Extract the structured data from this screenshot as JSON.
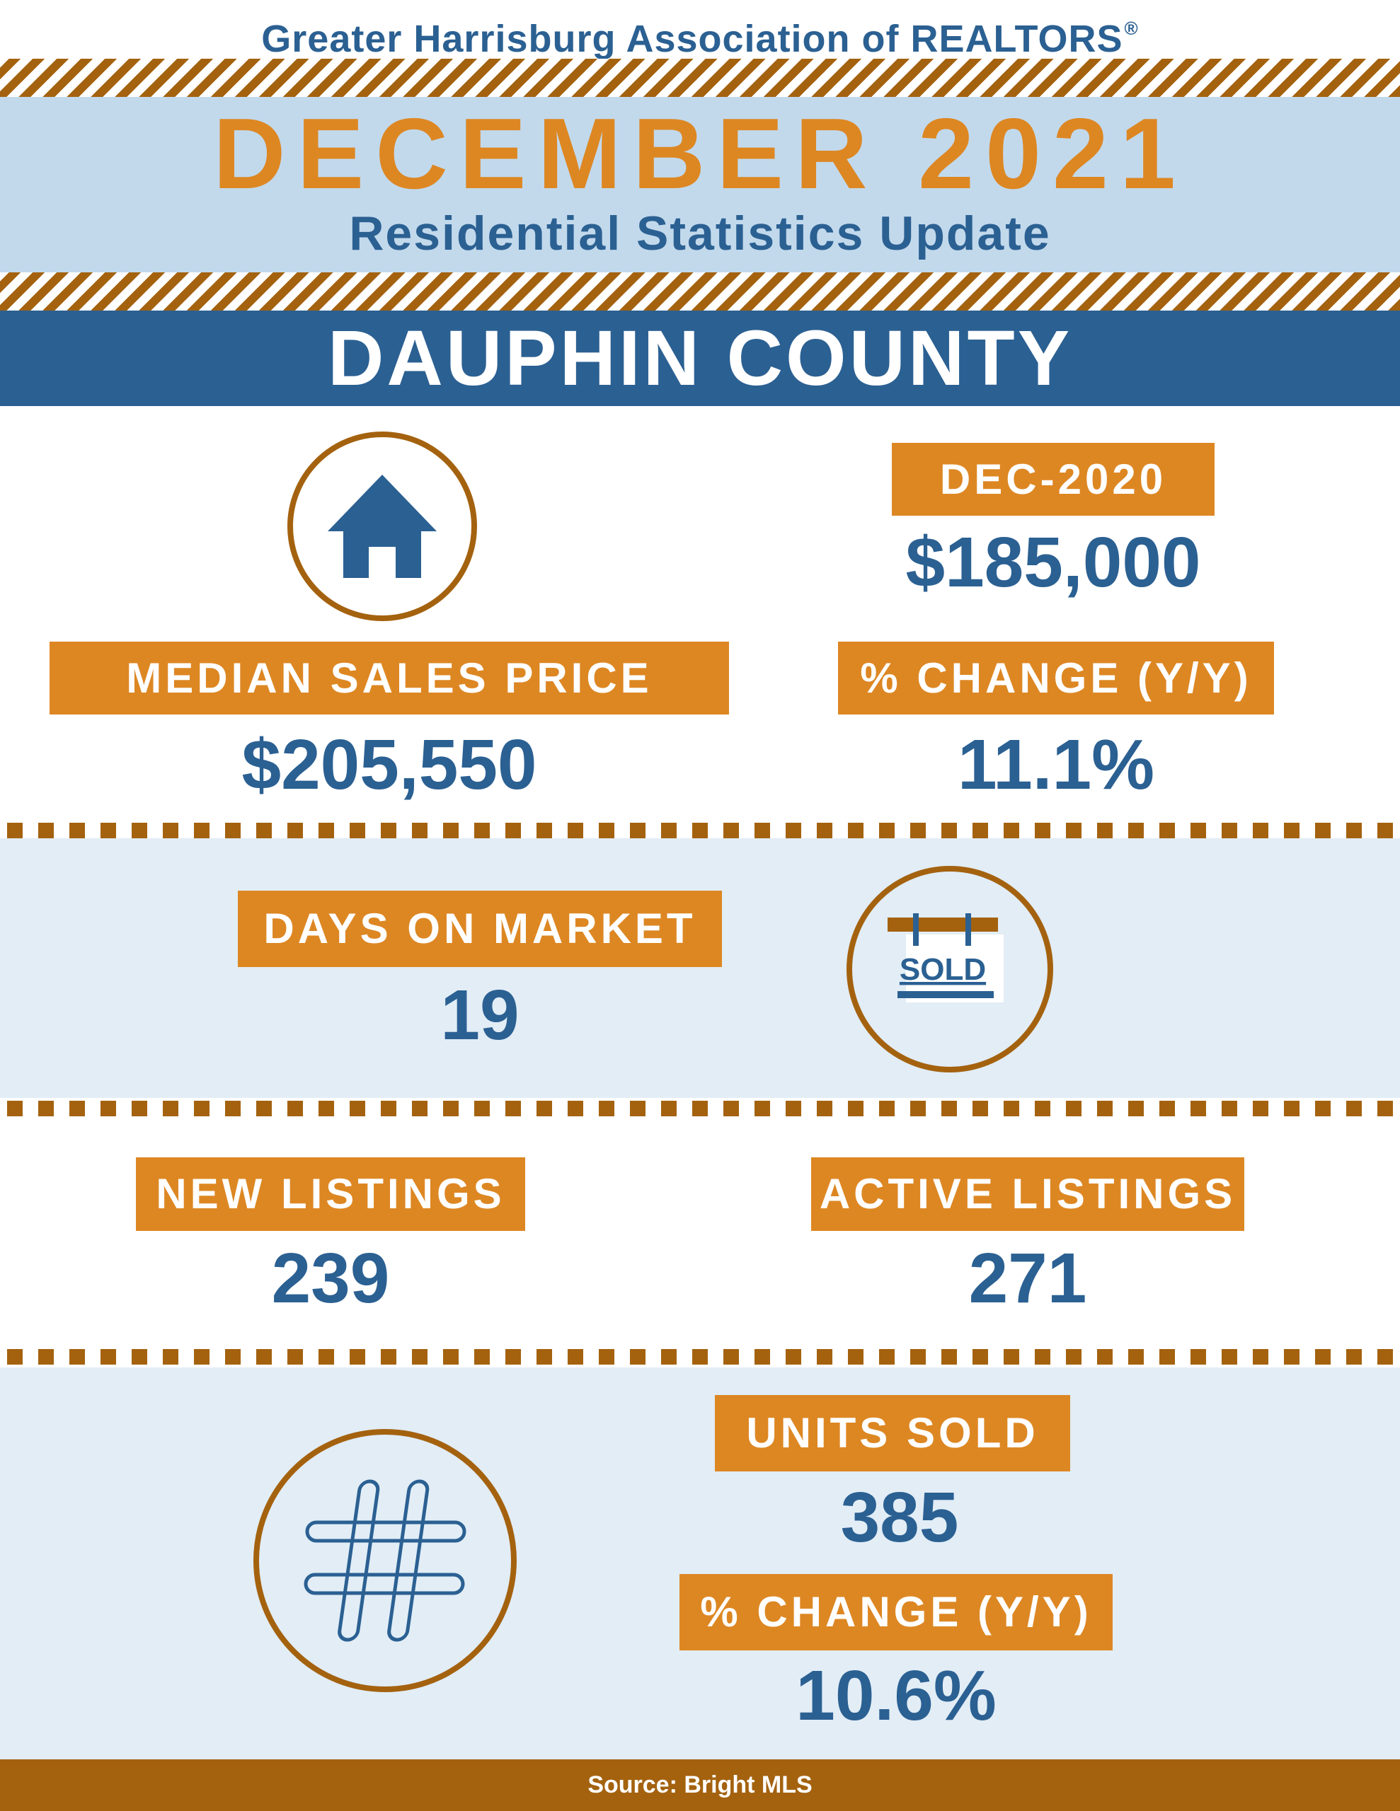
{
  "header": {
    "organization": "Greater Harrisburg Association of REALTORS",
    "registered_mark": "®",
    "month_title": "DECEMBER 2021",
    "subtitle": "Residential Statistics Update",
    "county": "DAUPHIN COUNTY"
  },
  "median_price": {
    "prior_label": "DEC-2020",
    "prior_value": "$185,000",
    "label": "MEDIAN SALES PRICE",
    "value": "$205,550",
    "change_label": "% CHANGE (Y/Y)",
    "change_value": "11.1%",
    "icon": "house-icon"
  },
  "days_on_market": {
    "label": "DAYS ON MARKET",
    "value": "19",
    "icon": "sold-sign-icon",
    "icon_text": "SOLD"
  },
  "listings": {
    "new_label": "NEW LISTINGS",
    "new_value": "239",
    "active_label": "ACTIVE LISTINGS",
    "active_value": "271"
  },
  "units_sold": {
    "label": "UNITS SOLD",
    "value": "385",
    "change_label": "% CHANGE (Y/Y)",
    "change_value": "10.6%",
    "icon": "hashtag-icon"
  },
  "footer": {
    "source": "Source: Bright MLS"
  },
  "colors": {
    "blue": "#2b6092",
    "orange": "#dd8723",
    "brown": "#a4620f",
    "light_blue": "#c2d9ec",
    "pale_blue": "#e2edf6"
  }
}
